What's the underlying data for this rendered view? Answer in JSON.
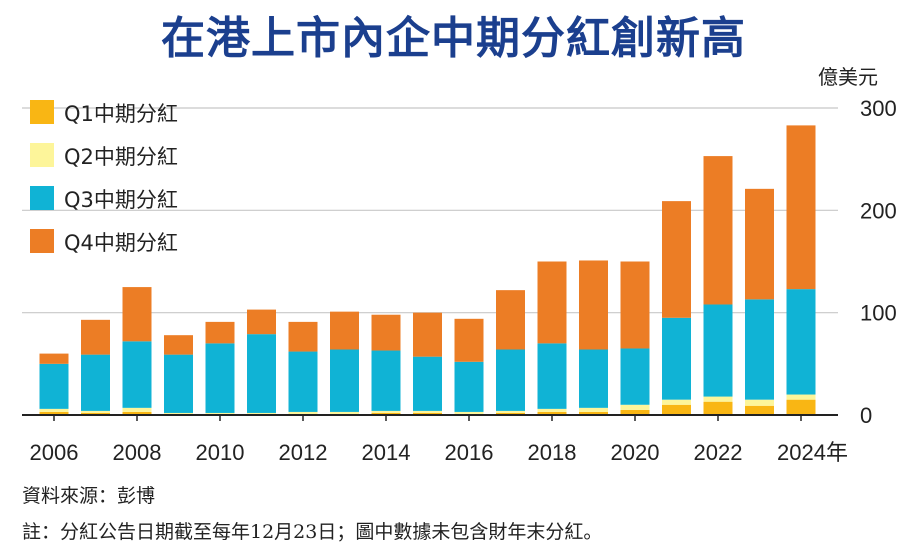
{
  "title": "在港上市內企中期分紅創新高",
  "colors": {
    "q1": "#f9b614",
    "q2": "#fdf59a",
    "q3": "#10b3d5",
    "q4": "#ec7d25",
    "grid": "#c8c8c8",
    "axis": "#222222"
  },
  "footer": {
    "source": "資料來源：彭博",
    "note": "註：分紅公告日期截至每年12月23日；圖中數據未包含財年末分紅。"
  },
  "chart_data": {
    "type": "bar",
    "stacked": true,
    "unit": "億美元",
    "categories": [
      "2006",
      "2007",
      "2008",
      "2009",
      "2010",
      "2011",
      "2012",
      "2013",
      "2014",
      "2015",
      "2016",
      "2017",
      "2018",
      "2019",
      "2020",
      "2021",
      "2022",
      "2023",
      "2024"
    ],
    "x_tick_labels": [
      "2006",
      "2008",
      "2010",
      "2012",
      "2014",
      "2016",
      "2018",
      "2020",
      "2022",
      "2024年"
    ],
    "series": [
      {
        "name": "Q1中期分紅",
        "color_key": "q1",
        "values": [
          3,
          2,
          3,
          1,
          1,
          1,
          1,
          1,
          2,
          2,
          1,
          2,
          3,
          3,
          5,
          10,
          13,
          9,
          15
        ]
      },
      {
        "name": "Q2中期分紅",
        "color_key": "q2",
        "values": [
          3,
          2,
          4,
          1,
          1,
          1,
          2,
          2,
          2,
          2,
          2,
          2,
          3,
          4,
          5,
          5,
          5,
          6,
          5
        ]
      },
      {
        "name": "Q3中期分紅",
        "color_key": "q3",
        "values": [
          44,
          55,
          65,
          57,
          68,
          77,
          59,
          61,
          59,
          53,
          49,
          60,
          64,
          57,
          55,
          80,
          90,
          98,
          103
        ]
      },
      {
        "name": "Q4中期分紅",
        "color_key": "q4",
        "values": [
          10,
          34,
          53,
          19,
          21,
          24,
          29,
          37,
          35,
          43,
          42,
          58,
          80,
          87,
          85,
          114,
          145,
          108,
          160
        ]
      }
    ],
    "y_ticks": [
      0,
      100,
      200,
      300
    ],
    "ylim": [
      0,
      300
    ],
    "grid": true,
    "legend_position": "top-left"
  }
}
